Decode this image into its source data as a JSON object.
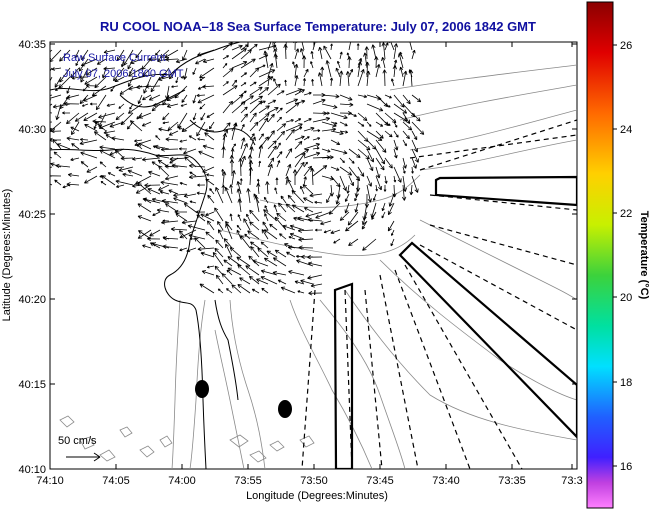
{
  "title": "RU COOL   NOAA–18   Sea Surface Temperature:   July 07, 2006 1842 GMT",
  "inset_line1": "Raw Surface Current",
  "inset_line2": "July 07, 2006 1800 GMT",
  "scale_label": "50 cm/s",
  "x_axis_label": "Longitude (Degrees:Minutes)",
  "y_axis_label": "Latitude (Degrees:Minutes)",
  "x_ticks": [
    "74:10",
    "74:05",
    "74:00",
    "73:55",
    "73:50",
    "73:45",
    "73:40",
    "73:35",
    "73:3"
  ],
  "y_ticks": [
    "40:35",
    "40:30",
    "40:25",
    "40:20",
    "40:15",
    "40:10"
  ],
  "colorbar_label": "Temperature (°C)",
  "colorbar_ticks": [
    "26",
    "24",
    "22",
    "20",
    "18",
    "16"
  ],
  "colors": {
    "title": "#1010a0",
    "inset_text": "#1a1aa6",
    "vectors": "#000000",
    "bathymetry": "#888888"
  }
}
